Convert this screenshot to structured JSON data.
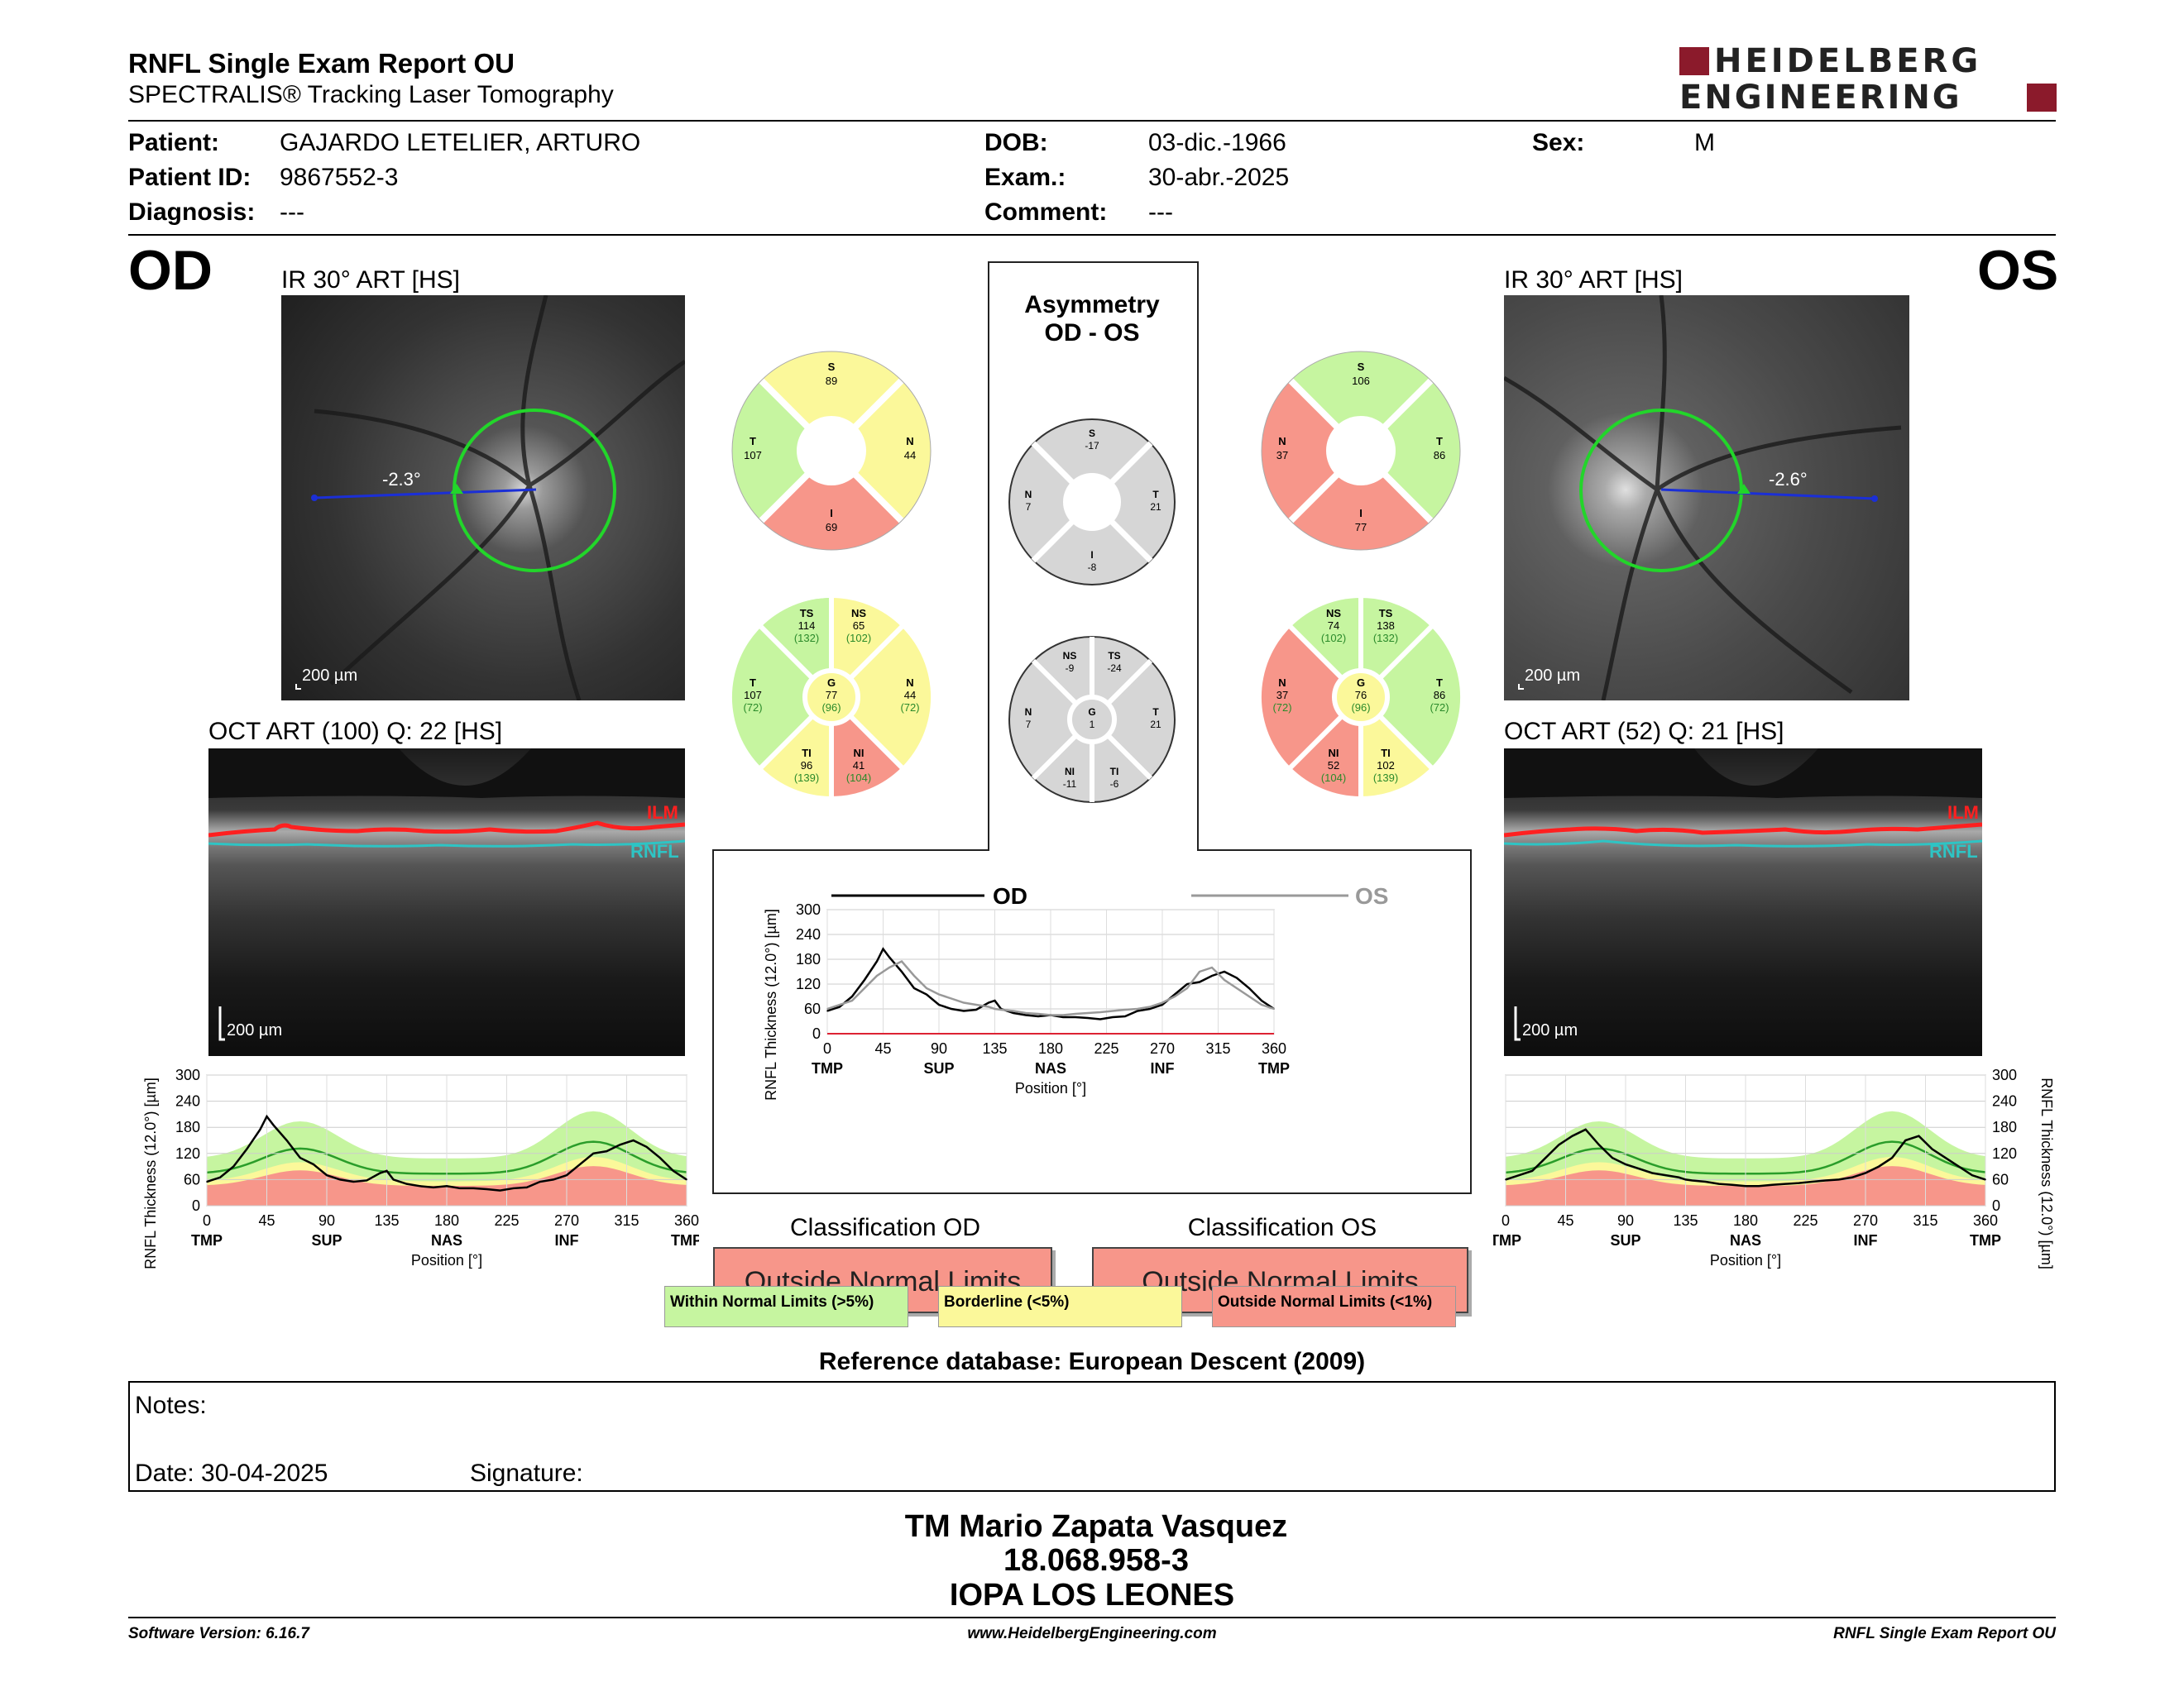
{
  "header": {
    "title": "RNFL Single Exam Report OU",
    "subtitle": "SPECTRALIS® Tracking Laser Tomography",
    "logo_line1": "HEIDELBERG",
    "logo_line2": "ENGINEERING"
  },
  "patient": {
    "patient_label": "Patient:",
    "patient_value": "GAJARDO LETELIER, ARTURO",
    "id_label": "Patient ID:",
    "id_value": "9867552-3",
    "diag_label": "Diagnosis:",
    "diag_value": "---",
    "dob_label": "DOB:",
    "dob_value": "03-dic.-1966",
    "exam_label": "Exam.:",
    "exam_value": "30-abr.-2025",
    "comment_label": "Comment:",
    "comment_value": "---",
    "sex_label": "Sex:",
    "sex_value": "M"
  },
  "od": {
    "eye_label": "OD",
    "ir_label": "IR 30° ART [HS]",
    "oct_label": "OCT ART (100) Q: 22 [HS]",
    "angle": "-2.3°",
    "scale_ir": "200 µm",
    "scale_oct": "200 µm",
    "ilm": "ILM",
    "rnfl": "RNFL",
    "sectors4": {
      "S": "89",
      "T": "107",
      "N": "44",
      "I": "69"
    },
    "sectors6": {
      "TS": "114",
      "TS_ref": "(132)",
      "NS": "65",
      "NS_ref": "(102)",
      "T": "107",
      "T_ref": "(72)",
      "G": "77",
      "G_ref": "(96)",
      "N": "44",
      "N_ref": "(72)",
      "TI": "96",
      "TI_ref": "(139)",
      "NI": "41",
      "NI_ref": "(104)"
    }
  },
  "os": {
    "eye_label": "OS",
    "ir_label": "IR 30° ART [HS]",
    "oct_label": "OCT ART (52) Q: 21 [HS]",
    "angle": "-2.6°",
    "scale_ir": "200 µm",
    "scale_oct": "200 µm",
    "ilm": "ILM",
    "rnfl": "RNFL",
    "sectors4": {
      "S": "106",
      "N": "37",
      "T": "86",
      "I": "77"
    },
    "sectors6": {
      "NS": "74",
      "NS_ref": "(102)",
      "TS": "138",
      "TS_ref": "(132)",
      "N": "37",
      "N_ref": "(72)",
      "G": "76",
      "G_ref": "(96)",
      "T": "86",
      "T_ref": "(72)",
      "NI": "52",
      "NI_ref": "(104)",
      "TI": "102",
      "TI_ref": "(139)"
    }
  },
  "asymmetry": {
    "title1": "Asymmetry",
    "title2": "OD - OS",
    "sectors4": {
      "S": "-17",
      "N": "7",
      "T": "21",
      "I": "-8"
    },
    "sectors6": {
      "NS": "-9",
      "TS": "-24",
      "N": "7",
      "G": "1",
      "T": "21",
      "NI": "-11",
      "TI": "-6"
    }
  },
  "labels": {
    "S": "S",
    "T": "T",
    "N": "N",
    "I": "I",
    "G": "G",
    "TS": "TS",
    "NS": "NS",
    "TI": "TI",
    "NI": "NI"
  },
  "classification": {
    "od_label": "Classification OD",
    "od_value": "Outside Normal Limits",
    "os_label": "Classification OS",
    "os_value": "Outside Normal Limits"
  },
  "legend": {
    "within": "Within Normal Limits (>5%)",
    "borderline": "Borderline (<5%)",
    "outside": "Outside Normal Limits (<1%)"
  },
  "reference": "Reference database: European Descent (2009)",
  "notes": {
    "notes_label": "Notes:",
    "date_label": "Date: 30-04-2025",
    "signature_label": "Signature:"
  },
  "signature_block": {
    "name": "TM Mario Zapata Vasquez",
    "rut": "18.068.958-3",
    "institution": "IOPA LOS LEONES"
  },
  "footer": {
    "version": "Software Version: 6.16.7",
    "website": "www.HeidelbergEngineering.com",
    "report": "RNFL Single Exam Report OU"
  },
  "colors": {
    "within": "#c6f5a0",
    "borderline": "#fbf89a",
    "outside": "#f7968a",
    "asym": "#d6d6d6",
    "od_line": "#000000",
    "os_line": "#999999",
    "mean_line": "#2a9d2a"
  },
  "chart_data": [
    {
      "type": "line",
      "name": "od_profile",
      "xlabel": "Position [°]",
      "ylabel": "RNFL Thickness (12.0°) [µm]",
      "x": [
        0,
        10,
        20,
        30,
        40,
        45,
        50,
        60,
        70,
        80,
        90,
        100,
        110,
        120,
        130,
        135,
        140,
        150,
        160,
        170,
        180,
        190,
        200,
        210,
        220,
        230,
        240,
        250,
        260,
        270,
        280,
        290,
        300,
        310,
        320,
        330,
        340,
        350,
        360
      ],
      "xlim": [
        0,
        360
      ],
      "ylim": [
        0,
        300
      ],
      "xticks": [
        "0",
        "45",
        "90",
        "135",
        "180",
        "225",
        "270",
        "315",
        "360"
      ],
      "yticks": [
        "0",
        "60",
        "120",
        "180",
        "240",
        "300"
      ],
      "region_labels": [
        "TMP",
        "SUP",
        "NAS",
        "INF",
        "TMP"
      ],
      "series": [
        {
          "values": [
            55,
            65,
            90,
            130,
            175,
            205,
            185,
            150,
            110,
            95,
            70,
            60,
            55,
            58,
            75,
            80,
            60,
            50,
            45,
            42,
            45,
            40,
            40,
            38,
            35,
            40,
            42,
            55,
            60,
            70,
            95,
            120,
            125,
            140,
            150,
            135,
            110,
            80,
            60
          ]
        }
      ]
    },
    {
      "type": "line",
      "name": "os_profile",
      "xlabel": "Position [°]",
      "ylabel": "RNFL Thickness (12.0°) [µm]",
      "x": [
        0,
        10,
        20,
        30,
        40,
        45,
        50,
        60,
        70,
        80,
        90,
        100,
        110,
        120,
        130,
        135,
        140,
        150,
        160,
        170,
        180,
        190,
        200,
        210,
        220,
        230,
        240,
        250,
        260,
        270,
        280,
        290,
        300,
        310,
        320,
        330,
        340,
        350,
        360
      ],
      "xlim": [
        0,
        360
      ],
      "ylim": [
        0,
        300
      ],
      "xticks": [
        "0",
        "45",
        "90",
        "135",
        "180",
        "225",
        "270",
        "315",
        "360"
      ],
      "yticks": [
        "0",
        "60",
        "120",
        "180",
        "240",
        "300"
      ],
      "region_labels": [
        "TMP",
        "SUP",
        "NAS",
        "INF",
        "TMP"
      ],
      "series": [
        {
          "values": [
            60,
            70,
            80,
            110,
            140,
            150,
            160,
            175,
            140,
            110,
            95,
            85,
            75,
            70,
            65,
            60,
            58,
            55,
            50,
            48,
            45,
            45,
            48,
            50,
            52,
            55,
            58,
            60,
            65,
            75,
            90,
            110,
            150,
            160,
            130,
            110,
            90,
            70,
            60
          ]
        }
      ]
    },
    {
      "type": "line",
      "name": "comparison",
      "xlabel": "Position [°]",
      "ylabel": "RNFL Thickness (12.0°) [µm]",
      "x": [
        0,
        10,
        20,
        30,
        40,
        45,
        50,
        60,
        70,
        80,
        90,
        100,
        110,
        120,
        130,
        135,
        140,
        150,
        160,
        170,
        180,
        190,
        200,
        210,
        220,
        230,
        240,
        250,
        260,
        270,
        280,
        290,
        300,
        310,
        320,
        330,
        340,
        350,
        360
      ],
      "xlim": [
        0,
        360
      ],
      "ylim": [
        0,
        300
      ],
      "xticks": [
        "0",
        "45",
        "90",
        "135",
        "180",
        "225",
        "270",
        "315",
        "360"
      ],
      "yticks": [
        "0",
        "60",
        "120",
        "180",
        "240",
        "300"
      ],
      "region_labels": [
        "TMP",
        "SUP",
        "NAS",
        "INF",
        "TMP"
      ],
      "series": [
        {
          "name": "OD",
          "values": [
            55,
            65,
            90,
            130,
            175,
            205,
            185,
            150,
            110,
            95,
            70,
            60,
            55,
            58,
            75,
            80,
            60,
            50,
            45,
            42,
            45,
            40,
            40,
            38,
            35,
            40,
            42,
            55,
            60,
            70,
            95,
            120,
            125,
            140,
            150,
            135,
            110,
            80,
            60
          ]
        },
        {
          "name": "OS",
          "values": [
            60,
            70,
            80,
            110,
            140,
            150,
            160,
            175,
            140,
            110,
            95,
            85,
            75,
            70,
            65,
            60,
            58,
            55,
            50,
            48,
            45,
            45,
            48,
            50,
            52,
            55,
            58,
            60,
            65,
            75,
            90,
            110,
            150,
            160,
            130,
            110,
            90,
            70,
            60
          ]
        }
      ]
    }
  ]
}
